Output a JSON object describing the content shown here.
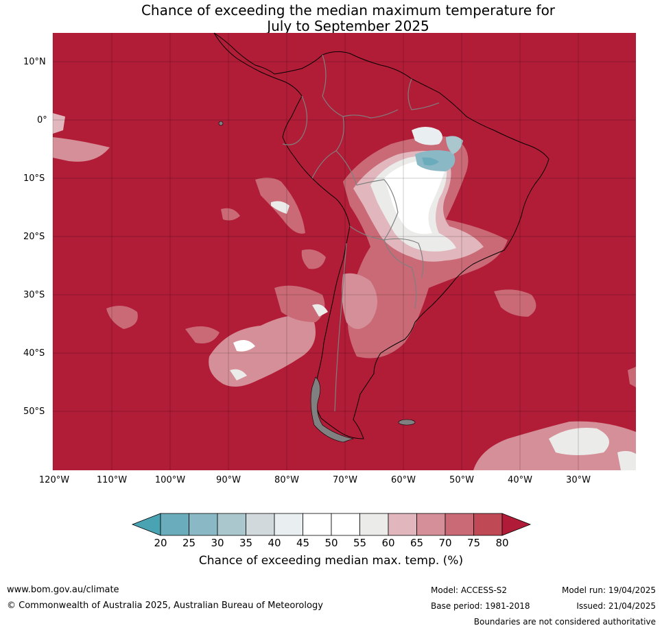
{
  "title": {
    "line1": "Chance of exceeding the median maximum temperature for",
    "line2": "July to September 2025"
  },
  "lat_labels": [
    "10°N",
    "0°",
    "10°S",
    "20°S",
    "30°S",
    "40°S",
    "50°S"
  ],
  "lon_labels": [
    "120°W",
    "110°W",
    "100°W",
    "90°W",
    "80°W",
    "70°W",
    "60°W",
    "50°W",
    "40°W",
    "30°W"
  ],
  "colorbar": {
    "ticks": [
      "20",
      "25",
      "30",
      "35",
      "40",
      "45",
      "50",
      "55",
      "60",
      "65",
      "70",
      "75",
      "80"
    ],
    "colors": [
      "#6aacbb",
      "#8ab9c5",
      "#a9c7cd",
      "#d2d9dc",
      "#e9eff1",
      "#ffffff",
      "#ffffff",
      "#ebebea",
      "#e1b6bd",
      "#d58f98",
      "#c96a76",
      "#c04956"
    ],
    "under_color": "#4aa3b3",
    "over_color": "#b01c38",
    "label": "Chance of exceeding median max. temp. (%)"
  },
  "map_colors": {
    "background": "#b11c37",
    "land_outline": "#000000",
    "border": "#808080"
  },
  "footer": {
    "website": "www.bom.gov.au/climate",
    "copyright": "© Commonwealth of Australia 2025, Australian Bureau of Meteorology",
    "model": "Model: ACCESS-S2",
    "base_period": "Base period: 1981-2018",
    "model_run": "Model run: 19/04/2025",
    "issued": "Issued: 21/04/2025",
    "disclaimer": "Boundaries are not considered authoritative"
  }
}
